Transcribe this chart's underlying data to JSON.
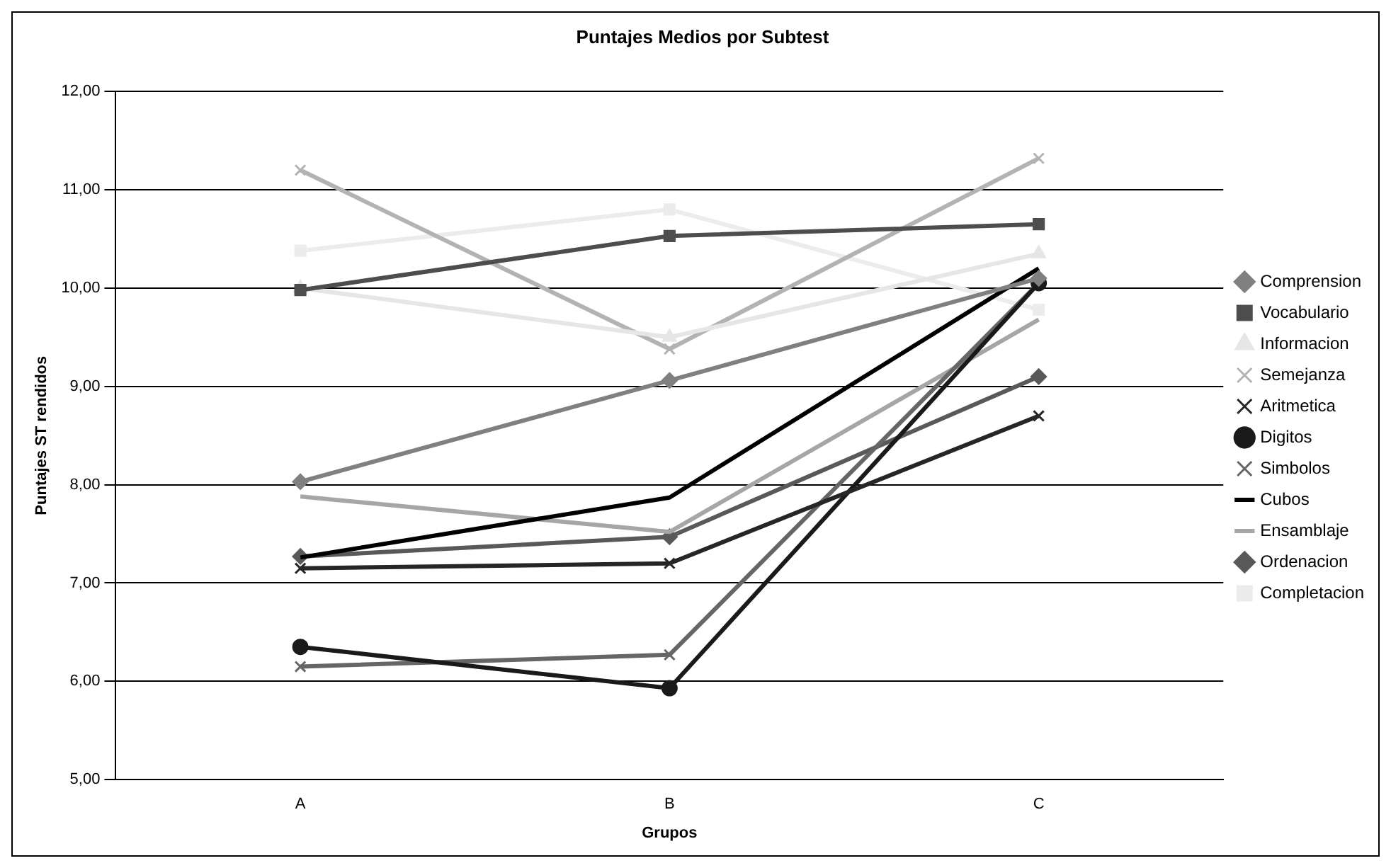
{
  "chart_data": {
    "type": "line",
    "title": "Puntajes Medios por Subtest",
    "xlabel": "Grupos",
    "ylabel": "Puntajes ST rendidos",
    "categories": [
      "A",
      "B",
      "C"
    ],
    "ylim": [
      5,
      12
    ],
    "yticks": [
      {
        "value": 5,
        "label": "5,00"
      },
      {
        "value": 6,
        "label": "6,00"
      },
      {
        "value": 7,
        "label": "7,00"
      },
      {
        "value": 8,
        "label": "8,00"
      },
      {
        "value": 9,
        "label": "9,00"
      },
      {
        "value": 10,
        "label": "10,00"
      },
      {
        "value": 11,
        "label": "11,00"
      },
      {
        "value": 12,
        "label": "12,00"
      }
    ],
    "grid": "y",
    "legend": "right",
    "series": [
      {
        "name": "Comprension",
        "color": "#808080",
        "marker": "diamond",
        "values": [
          8.03,
          9.06,
          10.1
        ]
      },
      {
        "name": "Vocabulario",
        "color": "#4d4d4d",
        "marker": "square",
        "values": [
          9.98,
          10.53,
          10.65
        ]
      },
      {
        "name": "Informacion",
        "color": "#e6e6e6",
        "marker": "triangle",
        "values": [
          10.0,
          9.5,
          10.35
        ]
      },
      {
        "name": "Semejanza",
        "color": "#b3b3b3",
        "marker": "cross",
        "values": [
          11.2,
          9.38,
          11.32
        ]
      },
      {
        "name": "Aritmetica",
        "color": "#262626",
        "marker": "cross",
        "values": [
          7.15,
          7.2,
          8.7
        ]
      },
      {
        "name": "Digitos",
        "color": "#1a1a1a",
        "marker": "circle",
        "values": [
          6.35,
          5.93,
          10.05
        ]
      },
      {
        "name": "Simbolos",
        "color": "#666666",
        "marker": "cross",
        "values": [
          6.15,
          6.27,
          10.05
        ]
      },
      {
        "name": "Cubos",
        "color": "#000000",
        "marker": "none",
        "values": [
          7.26,
          7.87,
          10.2
        ]
      },
      {
        "name": "Ensamblaje",
        "color": "#a6a6a6",
        "marker": "none",
        "values": [
          7.88,
          7.52,
          9.68
        ]
      },
      {
        "name": "Ordenacion",
        "color": "#595959",
        "marker": "diamond",
        "values": [
          7.27,
          7.47,
          9.1
        ]
      },
      {
        "name": "Completacion",
        "color": "#ececec",
        "marker": "square",
        "values": [
          10.38,
          10.8,
          9.78
        ]
      }
    ]
  }
}
